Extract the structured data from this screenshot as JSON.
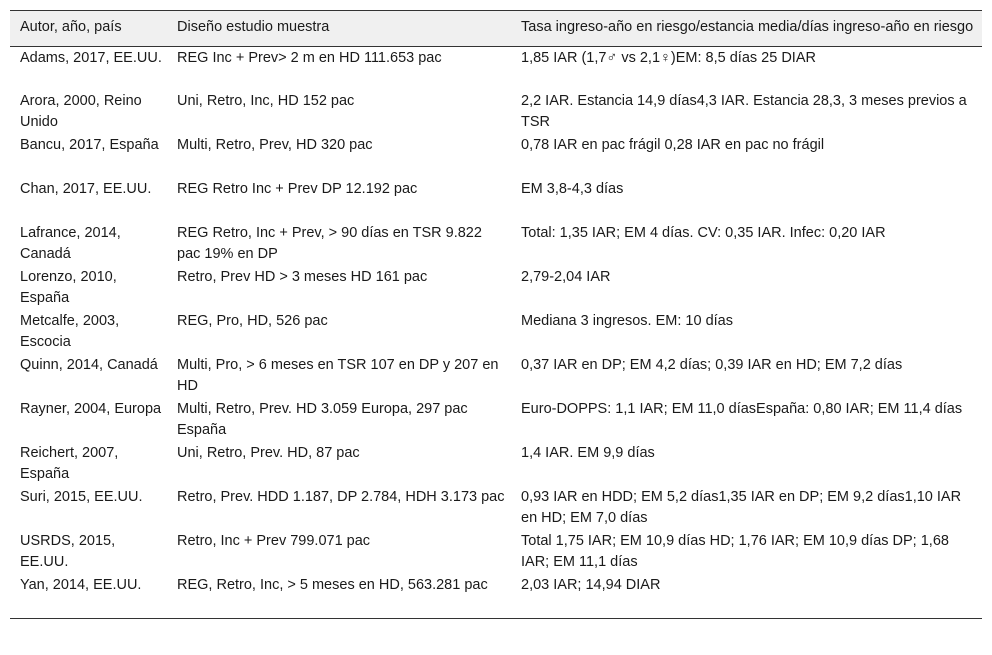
{
  "table": {
    "headers": [
      "Autor, año, país",
      "Diseño estudio muestra",
      "Tasa ingreso-año en riesgo/estancia media/días ingreso-año en riesgo"
    ],
    "rows": [
      [
        "Adams, 2017, EE.UU.",
        "REG Inc + Prev> 2 m en HD 111.653 pac",
        "1,85 IAR (1,7♂ vs 2,1♀)EM: 8,5 días 25 DIAR"
      ],
      [
        "Arora, 2000, Reino Unido",
        "Uni, Retro, Inc, HD 152 pac",
        "2,2 IAR. Estancia 14,9 días4,3 IAR. Estancia 28,3, 3 meses previos a TSR"
      ],
      [
        "Bancu, 2017, España",
        "Multi, Retro, Prev, HD 320 pac",
        "0,78 IAR en pac frágil 0,28 IAR en pac no frágil"
      ],
      [
        "Chan, 2017, EE.UU.",
        "REG Retro Inc + Prev DP 12.192 pac",
        "EM 3,8-4,3 días"
      ],
      [
        "Lafrance, 2014, Canadá",
        "REG Retro, Inc + Prev, > 90 días en TSR 9.822 pac 19% en DP",
        "Total: 1,35 IAR; EM 4 días. CV: 0,35 IAR. Infec: 0,20 IAR"
      ],
      [
        "Lorenzo, 2010, España",
        "Retro, Prev HD > 3 meses HD 161 pac",
        "2,79-2,04 IAR"
      ],
      [
        "Metcalfe, 2003, Escocia",
        "REG, Pro, HD, 526 pac",
        "Mediana 3 ingresos. EM: 10 días"
      ],
      [
        "Quinn, 2014, Canadá",
        "Multi, Pro, > 6 meses en TSR 107 en DP y 207 en HD",
        "0,37 IAR en DP; EM 4,2 días; 0,39 IAR en HD; EM 7,2 días"
      ],
      [
        "Rayner, 2004, Europa",
        "Multi, Retro, Prev. HD 3.059 Europa, 297 pac España",
        "Euro-DOPPS: 1,1 IAR; EM 11,0 díasEspaña: 0,80 IAR; EM 11,4 días"
      ],
      [
        "Reichert, 2007, España",
        "Uni, Retro, Prev. HD, 87 pac",
        "1,4 IAR. EM 9,9 días"
      ],
      [
        "Suri, 2015, EE.UU.",
        "Retro, Prev. HDD 1.187, DP 2.784, HDH 3.173 pac",
        "0,93 IAR en HDD; EM 5,2 días1,35 IAR en DP; EM 9,2 días1,10 IAR en HD; EM 7,0 días"
      ],
      [
        "USRDS, 2015, EE.UU.",
        "Retro, Inc + Prev 799.071 pac",
        "Total 1,75 IAR; EM 10,9 días HD; 1,76 IAR; EM 10,9 días DP; 1,68 IAR; EM 11,1 días"
      ],
      [
        "Yan, 2014, EE.UU.",
        "REG, Retro, Inc, > 5 meses en HD, 563.281 pac",
        "2,03 IAR; 14,94 DIAR"
      ]
    ]
  }
}
